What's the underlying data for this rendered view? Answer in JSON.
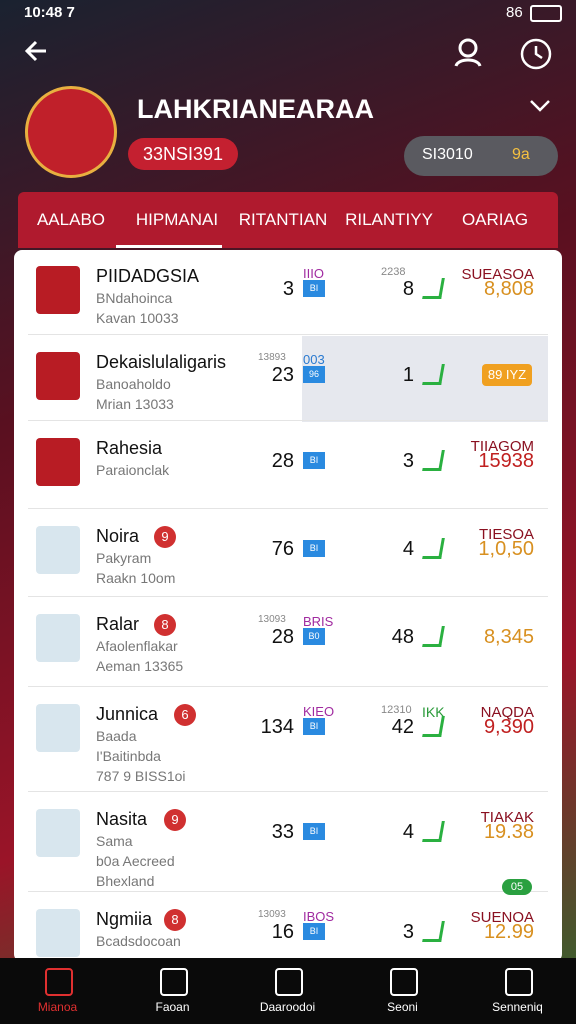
{
  "status_bar": {
    "time": "10:48 7",
    "battery": "86"
  },
  "header": {
    "title": "LAHKRIANEARAA",
    "badge": "33NSI391",
    "pill_left": "SI3010",
    "pill_right": "9a"
  },
  "tabs": [
    "AALABO",
    "HIPMANAI",
    "RITANTIAN",
    "RILANTIYY",
    "OARIAG"
  ],
  "rows": [
    {
      "name": "PIIDADGSIA",
      "lines": [
        "BNdahoinca",
        "Kavan 10033"
      ],
      "label1": "IIIO",
      "num1": "3",
      "badge": "BI",
      "label2": "2238",
      "num2": "8",
      "stat_label": "SUEASOA",
      "stat": "8,808"
    },
    {
      "name": "Dekaislulaligaris",
      "lines": [
        "Banoaholdo",
        "Mrian 13033"
      ],
      "label0": "13893",
      "label1": "003",
      "num1": "23",
      "badge": "96",
      "num2": "1",
      "stat_pill": "89 IYZ"
    },
    {
      "name": "Rahesia",
      "lines": [
        "Paraionclak"
      ],
      "num1": "28",
      "badge": "BI",
      "num2": "3",
      "stat_label": "TIIAGOM",
      "stat": "15938"
    },
    {
      "name": "Noira",
      "tag": "9",
      "lines": [
        "Pakyram",
        "Raakn 10om"
      ],
      "num1": "76",
      "badge": "BI",
      "num2": "4",
      "stat_label": "TIESOA",
      "stat": "1,0,50"
    },
    {
      "name": "Ralar",
      "tag": "8",
      "lines": [
        "Afaolenflakar",
        "Aeman 13365"
      ],
      "label0": "13093",
      "label1": "BRIS",
      "num1": "28",
      "badge": "B0",
      "num2": "48",
      "stat": "8,345"
    },
    {
      "name": "Junnica",
      "tag": "6",
      "lines": [
        "Baada",
        "I'Baitinbda",
        "787 9 BISS1oi"
      ],
      "label1": "KIEO",
      "num1": "134",
      "badge": "BI",
      "label2": "12310",
      "label3": "IKK",
      "num2": "42",
      "stat_label": "NAQDA",
      "stat": "9,390"
    },
    {
      "name": "Nasita",
      "tag": "9",
      "lines": [
        "Sama",
        "b0a Aecreed",
        "Bhexland"
      ],
      "num1": "33",
      "badge": "BI",
      "num2": "4",
      "stat_label": "TIAKAK",
      "stat": "19.38"
    },
    {
      "name": "Ngmiia",
      "tag": "8",
      "lines": [
        "Bcadsdocoan"
      ],
      "label0": "13093",
      "label1": "IBOS",
      "num1": "16",
      "badge": "BI",
      "num2": "3",
      "pre_pill": "05",
      "stat_label": "SUENOA",
      "stat": "12.99"
    }
  ],
  "bottom_nav": [
    "Mianoa",
    "Faoan",
    "Daaroodoi",
    "Seoni",
    "Senneniq"
  ]
}
